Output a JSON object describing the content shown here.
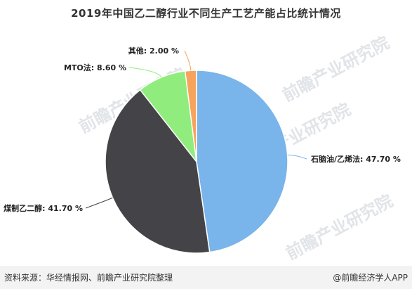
{
  "chart_data": {
    "type": "pie",
    "title": "2019年中国乙二醇行业不同生产工艺产能占比统计情况",
    "slices": [
      {
        "label": "石脑油/乙烯法",
        "value": 47.7,
        "display": "石脑油/乙烯法: 47.70 %",
        "color": "#79b4ea"
      },
      {
        "label": "煤制乙二醇",
        "value": 41.7,
        "display": "煤制乙二醇: 41.70 %",
        "color": "#434348"
      },
      {
        "label": "MTO法",
        "value": 8.6,
        "display": "MTO法: 8.60 %",
        "color": "#90ed7d"
      },
      {
        "label": "其他",
        "value": 2.0,
        "display": "其他: 2.00 %",
        "color": "#f7a35c"
      }
    ],
    "start": "12 o'clock",
    "direction": "clockwise"
  },
  "footer": {
    "source": "资料来源：华经情报网、前瞻产业研究院整理",
    "brand": "@前瞻经济学人APP"
  },
  "watermark": {
    "text": "前瞻产业研究院"
  }
}
